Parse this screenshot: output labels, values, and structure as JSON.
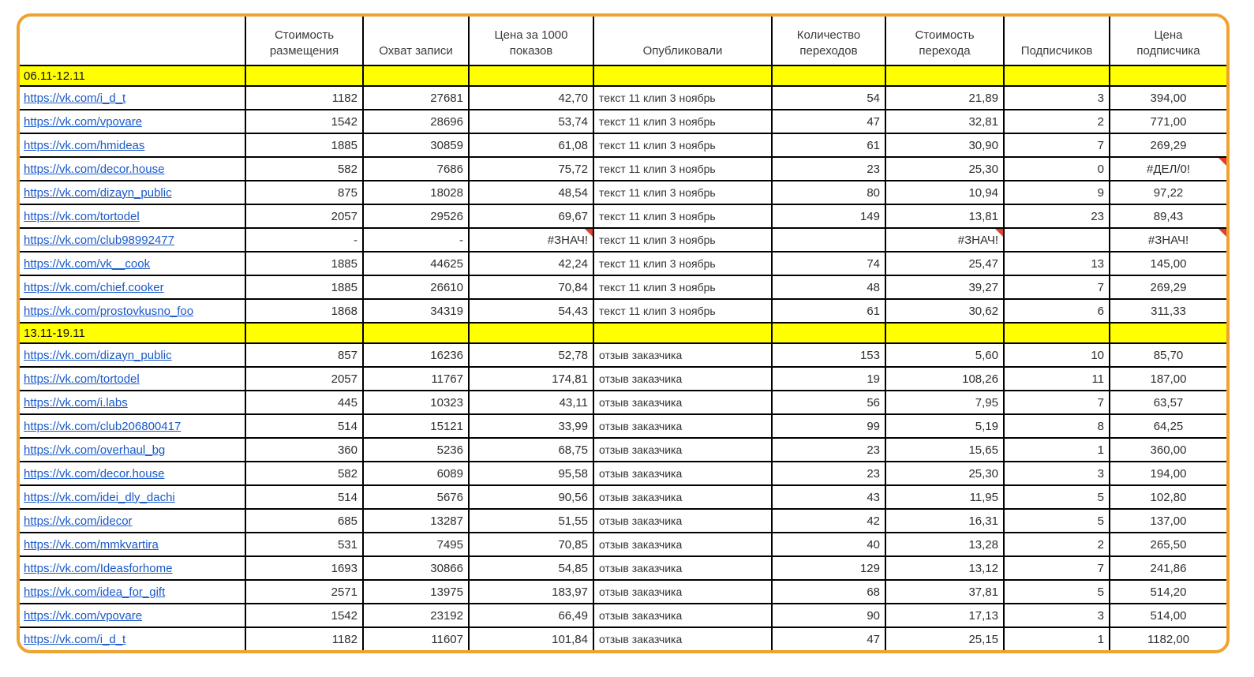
{
  "colors": {
    "frame_border": "#EFA22F",
    "section_background": "#FFFF00",
    "link": "#1959C8",
    "grid_line": "#000000",
    "comment_marker": "#E2402A"
  },
  "table": {
    "columns": [
      {
        "key": "url",
        "label": "",
        "align": "left"
      },
      {
        "key": "placement_cost",
        "label": "Стоимость\nразмещения",
        "align": "right"
      },
      {
        "key": "reach",
        "label": "Охват записи",
        "align": "right"
      },
      {
        "key": "cpm",
        "label": "Цена за 1000\nпоказов",
        "align": "right"
      },
      {
        "key": "published",
        "label": "Опубликовали",
        "align": "left"
      },
      {
        "key": "clicks",
        "label": "Количество\nпереходов",
        "align": "right"
      },
      {
        "key": "cpc",
        "label": "Стоимость\nперехода",
        "align": "right"
      },
      {
        "key": "subscribers",
        "label": "Подписчиков",
        "align": "right"
      },
      {
        "key": "cps",
        "label": "Цена\nподписчика",
        "align": "center"
      }
    ],
    "sections": [
      {
        "title": "06.11-12.11",
        "rows": [
          {
            "url": "https://vk.com/i_d_t",
            "placement_cost": "1182",
            "reach": "27681",
            "cpm": "42,70",
            "published": "текст 11 клип 3 ноябрь",
            "clicks": "54",
            "cpc": "21,89",
            "subscribers": "3",
            "cps": "394,00"
          },
          {
            "url": "https://vk.com/vpovare",
            "placement_cost": "1542",
            "reach": "28696",
            "cpm": "53,74",
            "published": "текст 11 клип 3 ноябрь",
            "clicks": "47",
            "cpc": "32,81",
            "subscribers": "2",
            "cps": "771,00"
          },
          {
            "url": "https://vk.com/hmideas",
            "placement_cost": "1885",
            "reach": "30859",
            "cpm": "61,08",
            "published": "текст 11 клип 3 ноябрь",
            "clicks": "61",
            "cpc": "30,90",
            "subscribers": "7",
            "cps": "269,29"
          },
          {
            "url": "https://vk.com/decor.house",
            "placement_cost": "582",
            "reach": "7686",
            "cpm": "75,72",
            "published": "текст 11 клип 3 ноябрь",
            "clicks": "23",
            "cpc": "25,30",
            "subscribers": "0",
            "cps": "#ДЕЛ/0!",
            "notes": [
              "cps"
            ]
          },
          {
            "url": "https://vk.com/dizayn_public",
            "placement_cost": "875",
            "reach": "18028",
            "cpm": "48,54",
            "published": "текст 11 клип 3 ноябрь",
            "clicks": "80",
            "cpc": "10,94",
            "subscribers": "9",
            "cps": "97,22"
          },
          {
            "url": "https://vk.com/tortodel",
            "placement_cost": "2057",
            "reach": "29526",
            "cpm": "69,67",
            "published": "текст 11 клип 3 ноябрь",
            "clicks": "149",
            "cpc": "13,81",
            "subscribers": "23",
            "cps": "89,43"
          },
          {
            "url": "https://vk.com/club98992477",
            "placement_cost": "-",
            "reach": "-",
            "cpm": "#ЗНАЧ!",
            "published": "текст 11 клип 3 ноябрь",
            "clicks": "",
            "cpc": "#ЗНАЧ!",
            "subscribers": "",
            "cps": "#ЗНАЧ!",
            "notes": [
              "cpm",
              "cpc",
              "cps"
            ]
          },
          {
            "url": "https://vk.com/vk__cook",
            "placement_cost": "1885",
            "reach": "44625",
            "cpm": "42,24",
            "published": "текст 11 клип 3 ноябрь",
            "clicks": "74",
            "cpc": "25,47",
            "subscribers": "13",
            "cps": "145,00"
          },
          {
            "url": "https://vk.com/chief.cooker",
            "placement_cost": "1885",
            "reach": "26610",
            "cpm": "70,84",
            "published": "текст 11 клип 3 ноябрь",
            "clicks": "48",
            "cpc": "39,27",
            "subscribers": "7",
            "cps": "269,29"
          },
          {
            "url": "https://vk.com/prostovkusno_foo",
            "placement_cost": "1868",
            "reach": "34319",
            "cpm": "54,43",
            "published": "текст 11 клип 3 ноябрь",
            "clicks": "61",
            "cpc": "30,62",
            "subscribers": "6",
            "cps": "311,33"
          }
        ]
      },
      {
        "title": "13.11-19.11",
        "rows": [
          {
            "url": "https://vk.com/dizayn_public",
            "placement_cost": "857",
            "reach": "16236",
            "cpm": "52,78",
            "published": "отзыв заказчика",
            "clicks": "153",
            "cpc": "5,60",
            "subscribers": "10",
            "cps": "85,70"
          },
          {
            "url": "https://vk.com/tortodel",
            "placement_cost": "2057",
            "reach": "11767",
            "cpm": "174,81",
            "published": "отзыв заказчика",
            "clicks": "19",
            "cpc": "108,26",
            "subscribers": "11",
            "cps": "187,00"
          },
          {
            "url": "https://vk.com/i.labs",
            "placement_cost": "445",
            "reach": "10323",
            "cpm": "43,11",
            "published": "отзыв заказчика",
            "clicks": "56",
            "cpc": "7,95",
            "subscribers": "7",
            "cps": "63,57"
          },
          {
            "url": "https://vk.com/club206800417",
            "placement_cost": "514",
            "reach": "15121",
            "cpm": "33,99",
            "published": "отзыв заказчика",
            "clicks": "99",
            "cpc": "5,19",
            "subscribers": "8",
            "cps": "64,25"
          },
          {
            "url": "https://vk.com/overhaul_bg",
            "placement_cost": "360",
            "reach": "5236",
            "cpm": "68,75",
            "published": "отзыв заказчика",
            "clicks": "23",
            "cpc": "15,65",
            "subscribers": "1",
            "cps": "360,00"
          },
          {
            "url": "https://vk.com/decor.house",
            "placement_cost": "582",
            "reach": "6089",
            "cpm": "95,58",
            "published": "отзыв заказчика",
            "clicks": "23",
            "cpc": "25,30",
            "subscribers": "3",
            "cps": "194,00"
          },
          {
            "url": "https://vk.com/idei_dly_dachi",
            "placement_cost": "514",
            "reach": "5676",
            "cpm": "90,56",
            "published": "отзыв заказчика",
            "clicks": "43",
            "cpc": "11,95",
            "subscribers": "5",
            "cps": "102,80"
          },
          {
            "url": "https://vk.com/idecor",
            "placement_cost": "685",
            "reach": "13287",
            "cpm": "51,55",
            "published": "отзыв заказчика",
            "clicks": "42",
            "cpc": "16,31",
            "subscribers": "5",
            "cps": "137,00"
          },
          {
            "url": "https://vk.com/mmkvartira",
            "placement_cost": "531",
            "reach": "7495",
            "cpm": "70,85",
            "published": "отзыв заказчика",
            "clicks": "40",
            "cpc": "13,28",
            "subscribers": "2",
            "cps": "265,50"
          },
          {
            "url": "https://vk.com/Ideasforhome",
            "placement_cost": "1693",
            "reach": "30866",
            "cpm": "54,85",
            "published": "отзыв заказчика",
            "clicks": "129",
            "cpc": "13,12",
            "subscribers": "7",
            "cps": "241,86"
          },
          {
            "url": "https://vk.com/idea_for_gift",
            "placement_cost": "2571",
            "reach": "13975",
            "cpm": "183,97",
            "published": "отзыв заказчика",
            "clicks": "68",
            "cpc": "37,81",
            "subscribers": "5",
            "cps": "514,20"
          },
          {
            "url": "https://vk.com/vpovare",
            "placement_cost": "1542",
            "reach": "23192",
            "cpm": "66,49",
            "published": "отзыв заказчика",
            "clicks": "90",
            "cpc": "17,13",
            "subscribers": "3",
            "cps": "514,00"
          },
          {
            "url": "https://vk.com/i_d_t",
            "placement_cost": "1182",
            "reach": "11607",
            "cpm": "101,84",
            "published": "отзыв заказчика",
            "clicks": "47",
            "cpc": "25,15",
            "subscribers": "1",
            "cps": "1182,00"
          }
        ]
      }
    ]
  }
}
